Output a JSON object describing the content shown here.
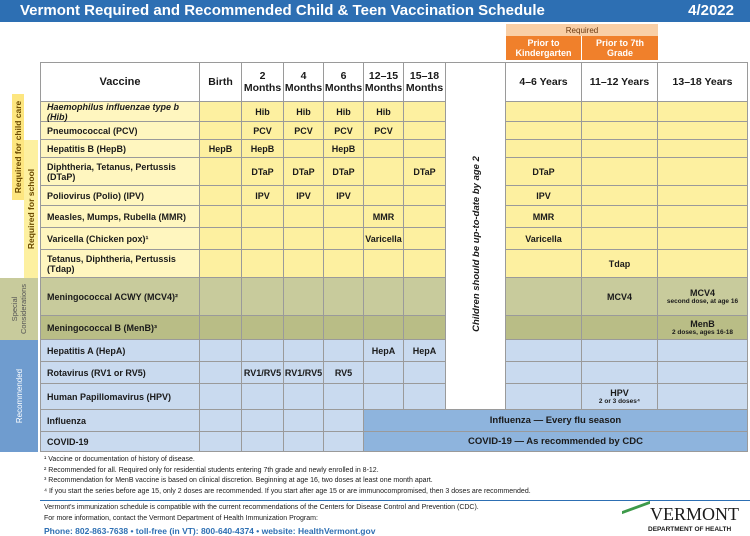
{
  "header": {
    "title": "Vermont Required and Recommended Child & Teen Vaccination Schedule",
    "date": "4/2022"
  },
  "required_label": "Required",
  "groups": [
    "Prior to Kindergarten",
    "Prior to 7th Grade"
  ],
  "side_labels": {
    "child_care": "Required for child care",
    "school": "Required for school",
    "special": "Special Considerations",
    "recommended": "Recommended"
  },
  "vertical_note": "Children should be up-to-date by age 2",
  "table": {
    "vaccine_header": "Vaccine",
    "columns": [
      "Birth",
      "2 Months",
      "4 Months",
      "6 Months",
      "12–15 Months",
      "15–18 Months",
      "4–6 Years",
      "11–12 Years",
      "13–18 Years"
    ],
    "rows": [
      {
        "name": "Haemophilus influenzae type b (Hib)",
        "cells": [
          null,
          "Hib",
          "Hib",
          "Hib",
          "Hib",
          null,
          null,
          null,
          null
        ]
      },
      {
        "name": "Pneumococcal (PCV)",
        "cells": [
          null,
          "PCV",
          "PCV",
          "PCV",
          "PCV",
          null,
          null,
          null,
          null
        ]
      },
      {
        "name": "Hepatitis B (HepB)",
        "cells": [
          "HepB",
          "HepB",
          null,
          "HepB",
          null,
          null,
          null,
          null,
          null
        ]
      },
      {
        "name": "Diphtheria, Tetanus, Pertussis (DTaP)",
        "cells": [
          null,
          "DTaP",
          "DTaP",
          "DTaP",
          null,
          "DTaP",
          "DTaP",
          null,
          null
        ]
      },
      {
        "name": "Poliovirus (Polio) (IPV)",
        "cells": [
          null,
          "IPV",
          "IPV",
          "IPV",
          null,
          null,
          "IPV",
          null,
          null
        ]
      },
      {
        "name": "Measles, Mumps, Rubella (MMR)",
        "cells": [
          null,
          null,
          null,
          null,
          "MMR",
          null,
          "MMR",
          null,
          null
        ]
      },
      {
        "name": "Varicella (Chicken pox)¹",
        "cells": [
          null,
          null,
          null,
          null,
          "Varicella",
          null,
          "Varicella",
          null,
          null
        ]
      },
      {
        "name": "Tetanus, Diphtheria, Pertussis (Tdap)",
        "cells": [
          null,
          null,
          null,
          null,
          null,
          null,
          null,
          "Tdap",
          null
        ]
      },
      {
        "name": "Meningococcal ACWY (MCV4)²",
        "cells": [
          null,
          null,
          null,
          null,
          null,
          null,
          null,
          "MCV4",
          {
            "text": "MCV4",
            "note": "second dose, at age 16"
          }
        ]
      },
      {
        "name": "Meningococcal B (MenB)³",
        "cells": [
          null,
          null,
          null,
          null,
          null,
          null,
          null,
          null,
          {
            "text": "MenB",
            "note": "2 doses, ages 16-18"
          }
        ]
      },
      {
        "name": "Hepatitis A (HepA)",
        "cells": [
          null,
          null,
          null,
          null,
          "HepA",
          "HepA",
          null,
          null,
          null
        ]
      },
      {
        "name": "Rotavirus (RV1 or RV5)",
        "cells": [
          null,
          "RV1/RV5",
          "RV1/RV5",
          "RV5",
          null,
          null,
          null,
          null,
          null
        ]
      },
      {
        "name": "Human Papillomavirus (HPV)",
        "cells": [
          null,
          null,
          null,
          null,
          null,
          null,
          null,
          {
            "text": "HPV",
            "note": "2 or 3 doses⁴"
          },
          null
        ]
      },
      {
        "name": "Influenza",
        "cells": [
          null,
          null,
          null,
          null
        ],
        "band": "Influenza — Every flu season"
      },
      {
        "name": "COVID-19",
        "cells": [
          null,
          null,
          null,
          null
        ],
        "band": "COVID-19 — As recommended by CDC"
      }
    ]
  },
  "footnotes": [
    "¹ Vaccine or documentation of history of disease.",
    "² Recommended for all. Required only for residential students entering 7th grade and newly enrolled in 8-12.",
    "³ Recommendation for MenB vaccine is based on clinical discretion. Beginning at age 16, two doses at least one month apart.",
    "⁴ If you start the series before age 15, only 2 doses are recommended.  If you start after age 15 or are immunocompromised, then 3 doses are recommended."
  ],
  "footer": {
    "lines": [
      "Vermont's immunization schedule is compatible with the current recommendations of the Centers for Disease Control and Prevention (CDC).",
      "For more information, contact the Vermont Department of Health Immunization Program:",
      "Phone: 802-863-7638 • toll-free (in VT): 800-640-4374 • website: HealthVermont.gov"
    ],
    "logo": "VERMONT",
    "logo_sub": "DEPARTMENT OF HEALTH"
  }
}
